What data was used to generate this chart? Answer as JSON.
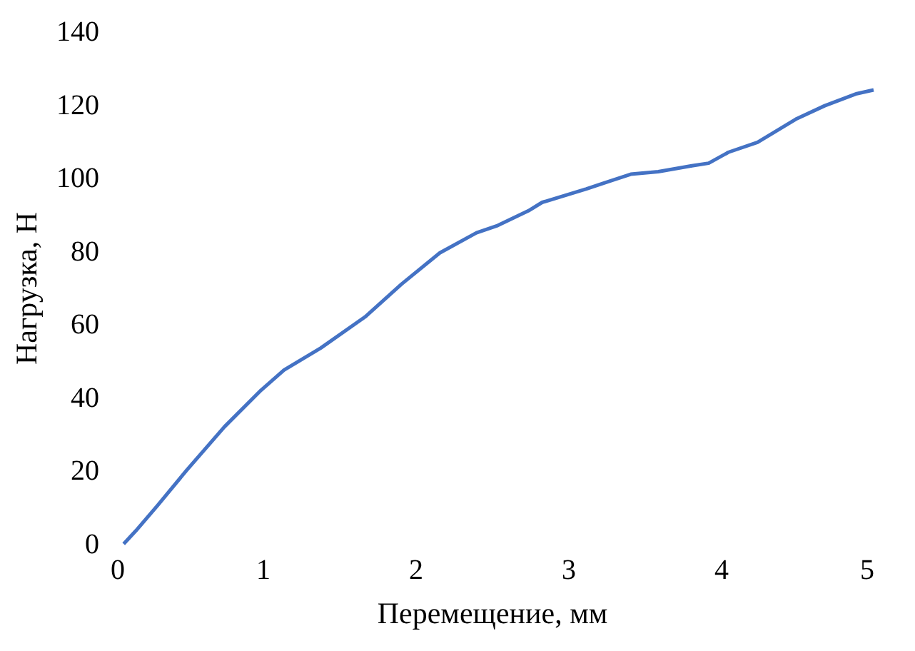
{
  "chart_data": {
    "type": "line",
    "xlabel": "Перемещение, мм",
    "ylabel": "Нагрузка, Н",
    "xlim": [
      0,
      5
    ],
    "xticks": [
      0,
      1,
      2,
      3,
      4,
      5
    ],
    "ylim": [
      0,
      140
    ],
    "yticks": [
      0,
      20,
      40,
      60,
      80,
      100,
      120,
      140
    ],
    "marker": "none",
    "line_style": "solid",
    "series": [
      {
        "color": "#4472c4",
        "x": [
          0.09,
          0.17,
          0.31,
          0.5,
          0.75,
          0.99,
          1.14,
          1.38,
          1.67,
          1.91,
          2.16,
          2.4,
          2.54,
          2.74,
          2.83,
          3.12,
          3.41,
          3.59,
          3.81,
          3.92,
          4.05,
          4.24,
          4.49,
          4.68,
          4.89,
          5.0
        ],
        "values": [
          0,
          3.6,
          10.4,
          20,
          32,
          42,
          47.5,
          53.5,
          62,
          71,
          79.5,
          85,
          87,
          91,
          93.3,
          97,
          101,
          101.7,
          103.3,
          104,
          107,
          109.7,
          116,
          119.7,
          123,
          124
        ]
      }
    ]
  }
}
